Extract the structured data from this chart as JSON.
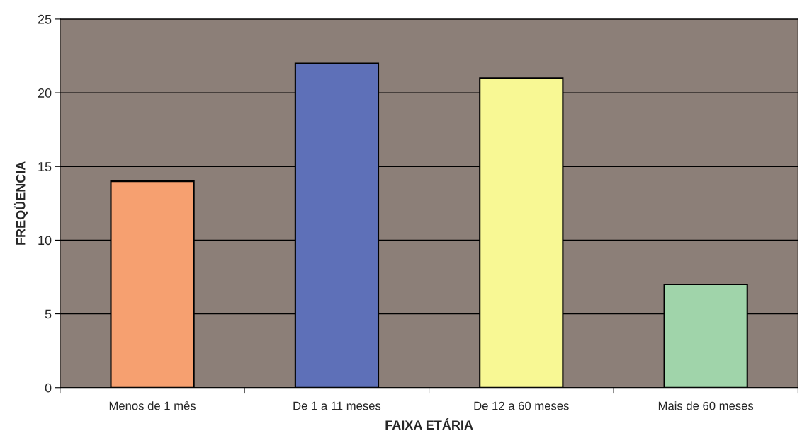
{
  "chart_data": {
    "type": "bar",
    "xlabel": "FAIXA ETÁRIA",
    "ylabel": "FREQÜENCIA",
    "categories": [
      "Menos de 1 mês",
      "De 1 a 11 meses",
      "De 12 a 60 meses",
      "Mais de 60 meses"
    ],
    "values": [
      14,
      22,
      21,
      7
    ],
    "colors": [
      "#f6a070",
      "#5e70b8",
      "#f8f894",
      "#a0d4aa"
    ],
    "ylim": [
      0,
      25
    ],
    "yticks": [
      0,
      5,
      10,
      15,
      20,
      25
    ],
    "grid": "y"
  }
}
